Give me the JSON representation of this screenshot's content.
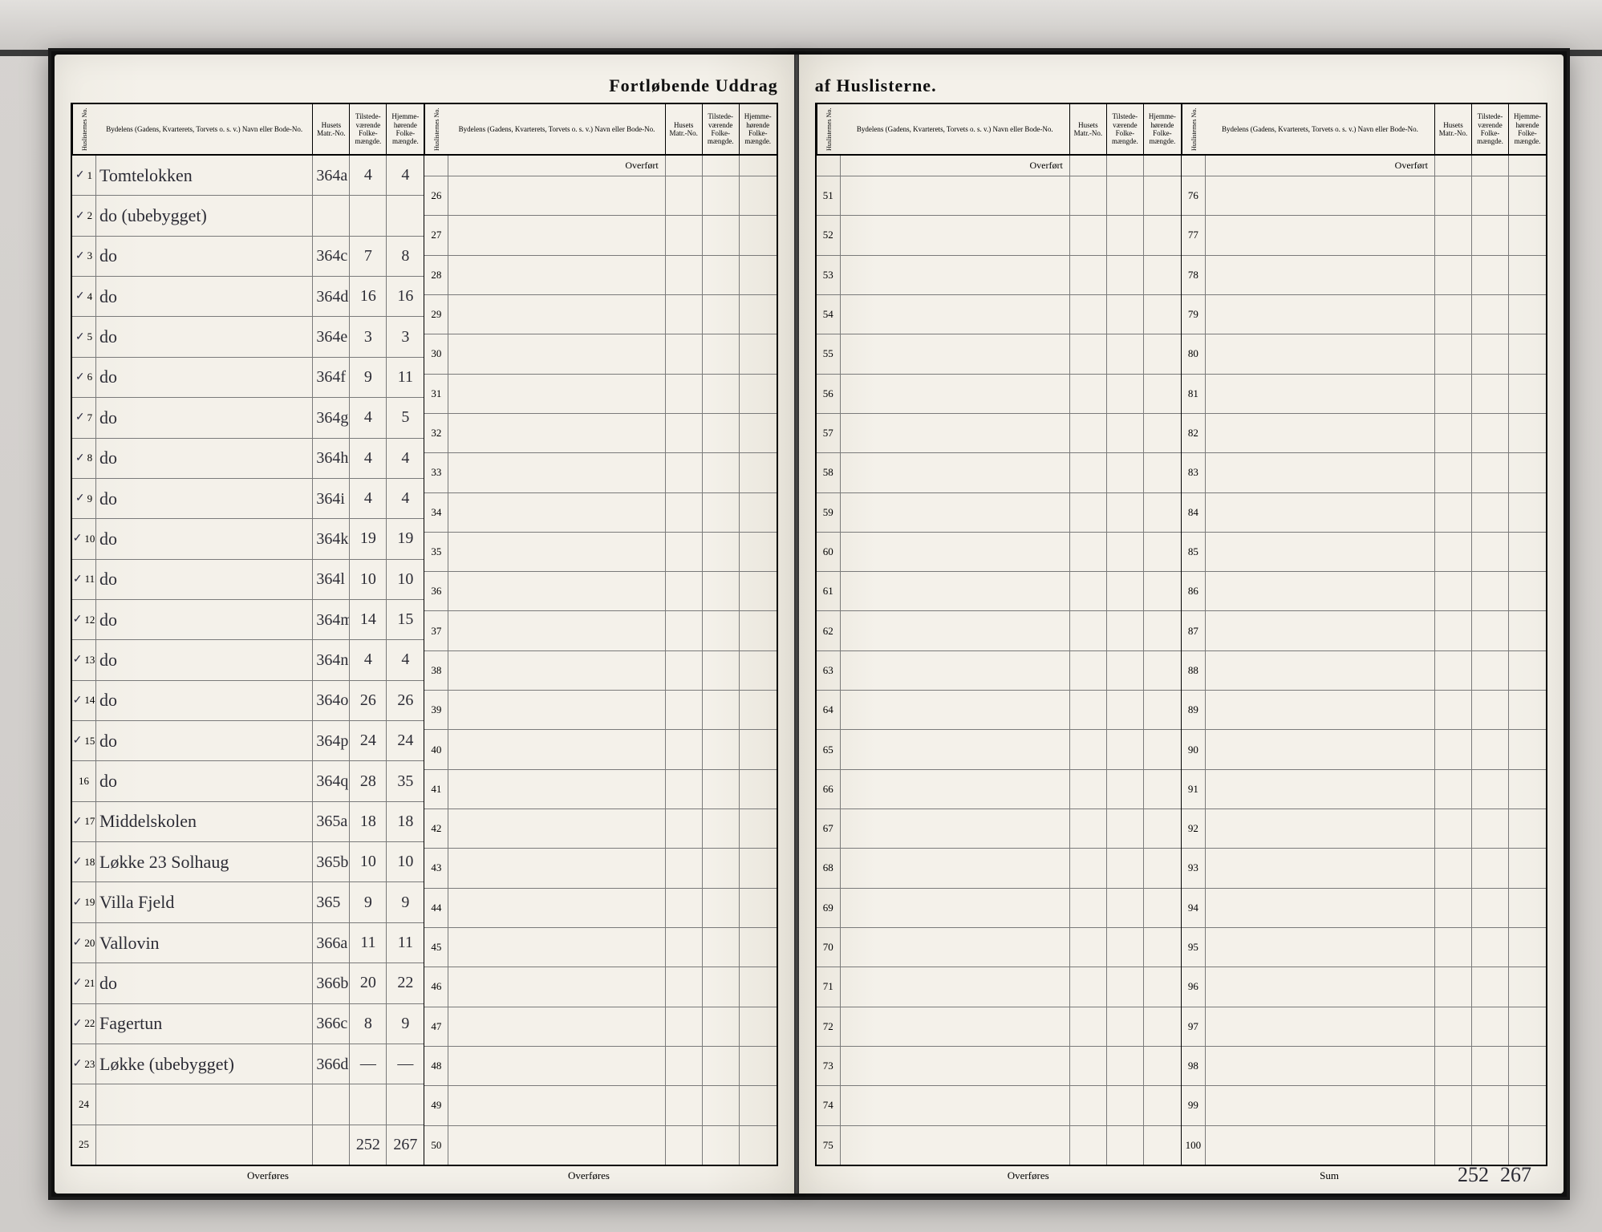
{
  "title_left": "Fortløbende Uddrag",
  "title_right": "af Huslisterne.",
  "headers": {
    "no": "Huslisternes No.",
    "bydelen": "Bydelens (Gadens, Kvarterets, Torvets o. s. v.) Navn eller Bode-No.",
    "matr": "Husets Matr.-No.",
    "tilstede": "Tilstede-værende Folke-mængde.",
    "hjemme": "Hjemme-hørende Folke-mængde."
  },
  "overfort_label": "Overført",
  "overfores_label": "Overføres",
  "sum_label": "Sum",
  "block1_rows": [
    {
      "no": "1",
      "tick": "✓",
      "byd": "Tomtelokken",
      "matr": "364a",
      "t": "4",
      "h": "4"
    },
    {
      "no": "2",
      "tick": "✓",
      "byd": "do (ubebygget)",
      "matr": "",
      "t": "",
      "h": ""
    },
    {
      "no": "3",
      "tick": "✓",
      "byd": "do",
      "matr": "364c",
      "t": "7",
      "h": "8"
    },
    {
      "no": "4",
      "tick": "✓",
      "byd": "do",
      "matr": "364d",
      "t": "16",
      "h": "16"
    },
    {
      "no": "5",
      "tick": "✓",
      "byd": "do",
      "matr": "364e",
      "t": "3",
      "h": "3"
    },
    {
      "no": "6",
      "tick": "✓",
      "byd": "do",
      "matr": "364f",
      "t": "9",
      "h": "11"
    },
    {
      "no": "7",
      "tick": "✓",
      "byd": "do",
      "matr": "364g",
      "t": "4",
      "h": "5"
    },
    {
      "no": "8",
      "tick": "✓",
      "byd": "do",
      "matr": "364h",
      "t": "4",
      "h": "4"
    },
    {
      "no": "9",
      "tick": "✓",
      "byd": "do",
      "matr": "364i",
      "t": "4",
      "h": "4"
    },
    {
      "no": "10",
      "tick": "✓",
      "byd": "do",
      "matr": "364k",
      "t": "19",
      "h": "19"
    },
    {
      "no": "11",
      "tick": "✓",
      "byd": "do",
      "matr": "364l",
      "t": "10",
      "h": "10"
    },
    {
      "no": "12",
      "tick": "✓",
      "byd": "do",
      "matr": "364m",
      "t": "14",
      "h": "15"
    },
    {
      "no": "13",
      "tick": "✓",
      "byd": "do",
      "matr": "364n",
      "t": "4",
      "h": "4"
    },
    {
      "no": "14",
      "tick": "✓",
      "byd": "do",
      "matr": "364o",
      "t": "26",
      "h": "26"
    },
    {
      "no": "15",
      "tick": "✓",
      "byd": "do",
      "matr": "364p",
      "t": "24",
      "h": "24"
    },
    {
      "no": "16",
      "tick": "",
      "byd": "do",
      "matr": "364q",
      "t": "28",
      "h": "35"
    },
    {
      "no": "17",
      "tick": "✓",
      "byd": "Middelskolen",
      "matr": "365a",
      "t": "18",
      "h": "18"
    },
    {
      "no": "18",
      "tick": "✓",
      "byd": "Løkke 23 Solhaug",
      "matr": "365b",
      "t": "10",
      "h": "10"
    },
    {
      "no": "19",
      "tick": "✓",
      "byd": "Villa Fjeld",
      "matr": "365",
      "t": "9",
      "h": "9"
    },
    {
      "no": "20",
      "tick": "✓",
      "byd": "Vallovin",
      "matr": "366a",
      "t": "11",
      "h": "11"
    },
    {
      "no": "21",
      "tick": "✓",
      "byd": "do",
      "matr": "366b",
      "t": "20",
      "h": "22"
    },
    {
      "no": "22",
      "tick": "✓",
      "byd": "Fagertun",
      "matr": "366c",
      "t": "8",
      "h": "9"
    },
    {
      "no": "23",
      "tick": "✓",
      "byd": "Løkke (ubebygget)",
      "matr": "366d",
      "t": "—",
      "h": "—"
    },
    {
      "no": "24",
      "tick": "",
      "byd": "",
      "matr": "",
      "t": "",
      "h": ""
    },
    {
      "no": "25",
      "tick": "",
      "byd": "",
      "matr": "",
      "t": "252",
      "h": "267"
    }
  ],
  "block2_start": 26,
  "block3_start": 51,
  "block4_start": 76,
  "rows_per_block": 25,
  "sum_t": "252",
  "sum_h": "267",
  "colors": {
    "paper": "#f4f1ea",
    "ink": "#2c2c35",
    "rule": "#000000",
    "rule_light": "#7a7a7a",
    "desk": "#d8d5d2"
  }
}
